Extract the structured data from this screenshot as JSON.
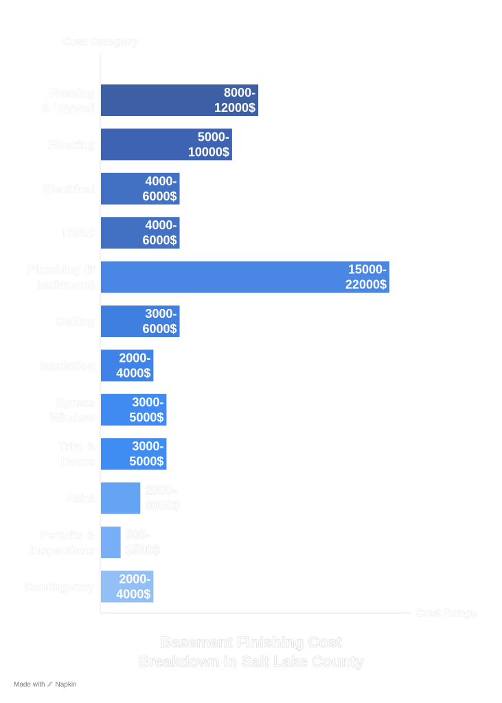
{
  "chart_data": {
    "type": "bar",
    "orientation": "horizontal",
    "title": "Basement Finishing Cost Breakdown in Salt Lake County",
    "ylabel": "Cost Category",
    "xlabel": "Cost Range",
    "grid": false,
    "categories": [
      "Framing & Drywall",
      "Flooring",
      "Electrical",
      "HVAC",
      "Plumbing (if bathroom)",
      "Ceiling",
      "Insulation",
      "Egress Window",
      "Trim & Doors",
      "Paint",
      "Permits & Inspections",
      "Contingency"
    ],
    "values": [
      12000,
      10000,
      6000,
      6000,
      22000,
      6000,
      4000,
      5000,
      5000,
      3000,
      1500,
      4000
    ],
    "value_labels": [
      "8000-12000$",
      "5000-10000$",
      "4000-6000$",
      "4000-6000$",
      "15000-22000$",
      "3000-6000$",
      "2000-4000$",
      "3000-5000$",
      "3000-5000$",
      "2000-3000$",
      "500-1500$",
      "2000-4000$"
    ],
    "colors": [
      "#3d5fa6",
      "#3e63b3",
      "#4270c2",
      "#4271c4",
      "#4a86e4",
      "#3f7fe0",
      "#3f83e8",
      "#3f8bf2",
      "#3f8cf2",
      "#65a3f5",
      "#78aff8",
      "#93bff7"
    ],
    "xlim": [
      0,
      22000
    ]
  },
  "title": {
    "line1": "Basement Finishing Cost",
    "line2": "Breakdown in Salt Lake County"
  },
  "footer": {
    "made_with": "Made with",
    "brand": "Napkin"
  }
}
